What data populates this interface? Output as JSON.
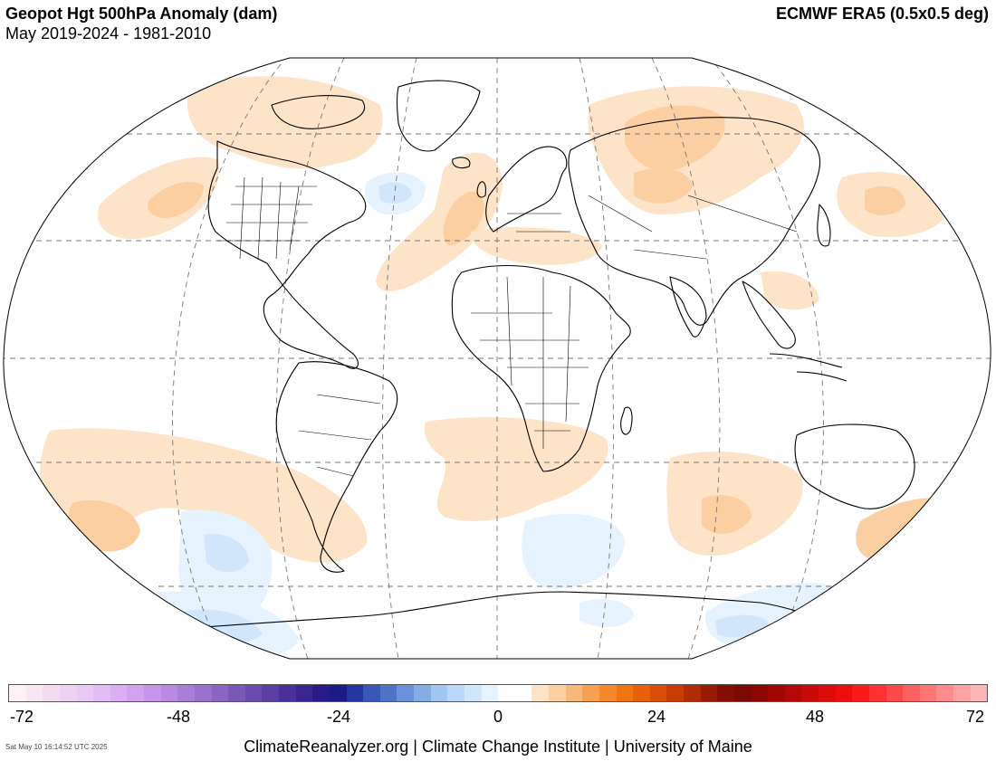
{
  "header": {
    "title": "Geopot Hgt 500hPa Anomaly (dam)",
    "subtitle": "May 2019-2024 - 1981-2010",
    "dataset": "ECMWF ERA5 (0.5x0.5 deg)"
  },
  "colorbar": {
    "ticks": [
      "-72",
      "-48",
      "-24",
      "0",
      "24",
      "48",
      "72"
    ],
    "colors": [
      "#fdf0f6",
      "#f9e6f3",
      "#f3dcf0",
      "#eed2f3",
      "#e8c8f5",
      "#e2bdf5",
      "#dab0f3",
      "#d0a2ef",
      "#c596ea",
      "#b88ae2",
      "#aa7ed8",
      "#9a72cd",
      "#8a66c2",
      "#7a58b8",
      "#6a4aae",
      "#5a3ea4",
      "#4a3099",
      "#3a248f",
      "#2a1a88",
      "#1c1a86",
      "#2436a0",
      "#3a56b6",
      "#4f74c6",
      "#6a92d8",
      "#86ace6",
      "#a2c6f2",
      "#bcd8f8",
      "#d2e6fb",
      "#e6f2fd",
      "#ffffff",
      "#ffffff",
      "#fde3c8",
      "#fbcfa2",
      "#f9b87a",
      "#f7a052",
      "#f5882a",
      "#f07410",
      "#e86008",
      "#d84e06",
      "#c83c04",
      "#b02c04",
      "#981c04",
      "#840e04",
      "#7a0a04",
      "#8c0604",
      "#a00604",
      "#b40806",
      "#c80a08",
      "#dc0c0a",
      "#ee0e0c",
      "#fa1a18",
      "#fc3232",
      "#fc4a4a",
      "#fc6060",
      "#fc7676",
      "#fc8c8c",
      "#fca2a2",
      "#fcb4b4"
    ]
  },
  "map": {
    "projection": "Robinson",
    "anomaly_colors": {
      "positive_light": "#fde3c8",
      "positive_medium": "#fbcfa2",
      "negative_light": "#e6f2fd",
      "negative_medium": "#d2e6fb"
    }
  },
  "footer": {
    "credits": "ClimateReanalyzer.org | Climate Change Institute | University of Maine",
    "timestamp": "Sat May 10 16:14:52 UTC 2025"
  }
}
